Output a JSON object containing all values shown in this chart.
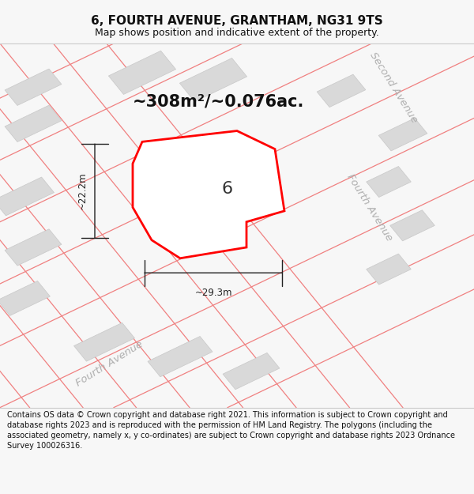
{
  "title": "6, FOURTH AVENUE, GRANTHAM, NG31 9TS",
  "subtitle": "Map shows position and indicative extent of the property.",
  "footer": "Contains OS data © Crown copyright and database right 2021. This information is subject to Crown copyright and database rights 2023 and is reproduced with the permission of HM Land Registry. The polygons (including the associated geometry, namely x, y co-ordinates) are subject to Crown copyright and database rights 2023 Ordnance Survey 100026316.",
  "area_label": "~308m²/~0.076ac.",
  "property_number": "6",
  "dim_height": "~22.2m",
  "dim_width": "~29.3m",
  "road_label_bottom": "Fourth Avenue",
  "road_label_right": "Fourth Avenue",
  "road_label_top_right": "Second Avenue",
  "bg_color": "#f7f7f7",
  "map_bg": "#efefef",
  "property_fill": "#ffffff",
  "property_edge": "#ff0000",
  "road_line_color": "#f08080",
  "building_fill": "#d9d9d9",
  "building_edge": "#c8c8c8",
  "road_label_color": "#b0b0b0",
  "dim_color": "#222222",
  "title_fontsize": 11,
  "subtitle_fontsize": 9,
  "footer_fontsize": 7.0,
  "area_fontsize": 15,
  "number_fontsize": 16,
  "dim_fontsize": 8.5,
  "road_fontsize": 9.5
}
